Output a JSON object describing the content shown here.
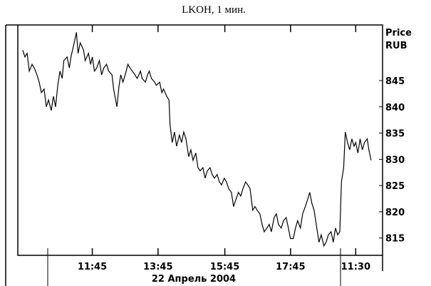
{
  "chart_data": {
    "type": "line",
    "title": "LKOH, 1 мин.",
    "x_label": "22 Апрель 2004",
    "y_label": [
      "Price",
      "RUB"
    ],
    "color": "#000000",
    "y_axis_side": "right",
    "x": [
      0,
      4,
      8,
      12,
      17,
      21,
      26,
      30,
      34,
      39,
      43,
      47,
      52,
      56,
      60,
      64,
      68,
      72,
      75,
      81,
      85,
      88,
      94,
      98,
      101,
      105,
      111,
      114,
      120,
      124,
      127,
      131,
      135,
      140,
      144,
      148,
      153,
      157,
      163,
      166,
      172,
      176,
      179,
      183,
      189,
      192,
      196,
      200,
      205,
      209,
      215,
      218,
      224,
      228,
      231,
      235,
      241,
      244,
      250,
      254,
      257,
      263,
      267,
      269,
      273,
      277,
      281,
      286,
      290,
      294,
      298,
      303,
      307,
      311,
      316,
      320,
      324,
      329,
      333,
      337,
      342,
      346,
      350,
      355,
      359,
      363,
      368,
      372,
      376,
      381,
      385,
      389,
      394,
      398,
      402,
      407,
      411,
      415,
      420,
      424,
      428,
      433,
      437,
      441,
      446,
      450,
      454,
      459,
      463,
      467,
      472,
      476,
      481,
      485,
      489,
      494,
      498,
      502,
      507,
      511,
      516,
      520,
      524,
      528,
      532,
      537,
      541,
      545,
      550,
      554,
      558,
      563,
      567,
      571,
      575,
      579,
      582,
      586,
      589,
      593,
      597,
      601,
      605,
      608,
      612,
      616,
      620,
      624,
      629,
      632,
      636
    ],
    "values": [
      850.8,
      849.5,
      850.2,
      846.8,
      848.1,
      847.4,
      846.1,
      844.7,
      842.7,
      843.4,
      840.0,
      841.3,
      839.3,
      842.0,
      840.0,
      844.1,
      846.8,
      845.4,
      848.8,
      849.5,
      847.4,
      849.5,
      852.2,
      854.2,
      850.2,
      852.2,
      850.8,
      848.8,
      850.2,
      848.1,
      849.5,
      846.8,
      847.4,
      848.8,
      846.1,
      847.4,
      848.1,
      846.8,
      846.1,
      843.4,
      840.0,
      844.1,
      846.1,
      844.7,
      846.8,
      848.1,
      847.4,
      846.8,
      846.1,
      845.4,
      846.8,
      845.4,
      844.7,
      846.1,
      846.8,
      845.4,
      844.7,
      844.1,
      844.7,
      842.7,
      843.4,
      842.0,
      841.3,
      836.6,
      833.2,
      835.2,
      832.5,
      834.6,
      833.2,
      835.2,
      833.9,
      830.5,
      831.8,
      829.8,
      831.2,
      828.4,
      827.8,
      828.4,
      826.4,
      827.8,
      828.4,
      827.1,
      826.4,
      827.1,
      825.7,
      825.1,
      826.4,
      825.7,
      824.4,
      823.7,
      821.0,
      822.3,
      823.7,
      823.0,
      824.4,
      825.7,
      825.1,
      824.4,
      820.3,
      821.0,
      820.3,
      819.6,
      817.6,
      816.2,
      816.9,
      817.6,
      816.2,
      818.9,
      819.6,
      817.6,
      816.9,
      818.3,
      818.9,
      816.9,
      814.9,
      814.9,
      816.9,
      818.3,
      816.9,
      819.6,
      821.0,
      822.3,
      823.7,
      821.6,
      820.3,
      816.9,
      814.2,
      815.6,
      813.5,
      814.2,
      815.6,
      816.2,
      814.2,
      816.9,
      815.6,
      816.2,
      825.7,
      828.4,
      835.2,
      833.2,
      831.8,
      833.9,
      832.5,
      833.2,
      831.2,
      833.9,
      831.8,
      833.2,
      833.9,
      831.8,
      829.8
    ],
    "xlim": [
      -9,
      657
    ],
    "xticks": [
      {
        "value": 127,
        "label": "11:45"
      },
      {
        "value": 247,
        "label": "13:45"
      },
      {
        "value": 369,
        "label": "15:45"
      },
      {
        "value": 489,
        "label": "17:45"
      },
      {
        "value": 608,
        "label": "11:30"
      }
    ],
    "ylim": [
      811.7,
      855.6
    ],
    "yticks": [
      815,
      820,
      825,
      830,
      835,
      840,
      845
    ]
  }
}
